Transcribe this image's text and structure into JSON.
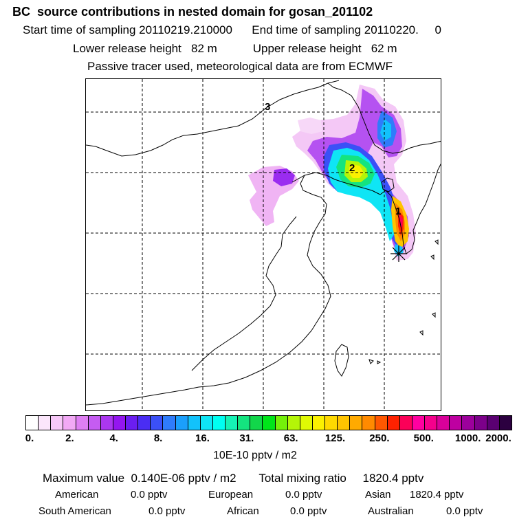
{
  "header": {
    "title": "BC  source contributions in nested domain for gosan_201102",
    "sampling_line": "Start time of sampling 20110219.210000      End time of sampling 20110220.     0",
    "release_line": "Lower release height   82 m           Upper release height   62 m",
    "tracer_line": "Passive tracer used, meteorological data are from ECMWF"
  },
  "map": {
    "markers": [
      {
        "label": "1"
      },
      {
        "label": "2"
      },
      {
        "label": "3"
      }
    ],
    "receptor": "gosan-station-star"
  },
  "colorbar": {
    "colors": [
      "#ffffff",
      "#fbe6fb",
      "#f7c8f8",
      "#f2a9f5",
      "#df7ff3",
      "#c55cf2",
      "#ab37f0",
      "#9416ef",
      "#6b1ef0",
      "#4a2df3",
      "#3b50f7",
      "#2f7cfb",
      "#1b9ffc",
      "#12c2fb",
      "#0fe5f5",
      "#00fff2",
      "#15f2b5",
      "#14e47f",
      "#12d64a",
      "#00e51a",
      "#74f00a",
      "#b4f508",
      "#e0f904",
      "#fbf100",
      "#ffd900",
      "#ffc400",
      "#ffaa00",
      "#ff8a00",
      "#ff5700",
      "#ff2200",
      "#fb0058",
      "#ff00a0",
      "#f4008c",
      "#d9009a",
      "#be00a1",
      "#9c009c",
      "#7c008a",
      "#5a0072",
      "#2c0040"
    ],
    "tick_labels": [
      "0.",
      "2.",
      "4.",
      "8.",
      "16.",
      "31.",
      "63.",
      "125.",
      "250.",
      "500.",
      "1000.",
      "2000."
    ],
    "unit": "10E-10 pptv / m2"
  },
  "summary": {
    "max_value_line": "Maximum value  0.140E-06 pptv / m2       Total mixing ratio     1820.4 pptv",
    "regions": [
      {
        "name": "American",
        "value": "0.0 pptv"
      },
      {
        "name": "European",
        "value": "0.0 pptv"
      },
      {
        "name": "Asian",
        "value": "1820.4 pptv"
      },
      {
        "name": "South American",
        "value": "0.0 pptv"
      },
      {
        "name": "African",
        "value": "0.0 pptv"
      },
      {
        "name": "Australian",
        "value": "0.0 pptv"
      }
    ]
  }
}
